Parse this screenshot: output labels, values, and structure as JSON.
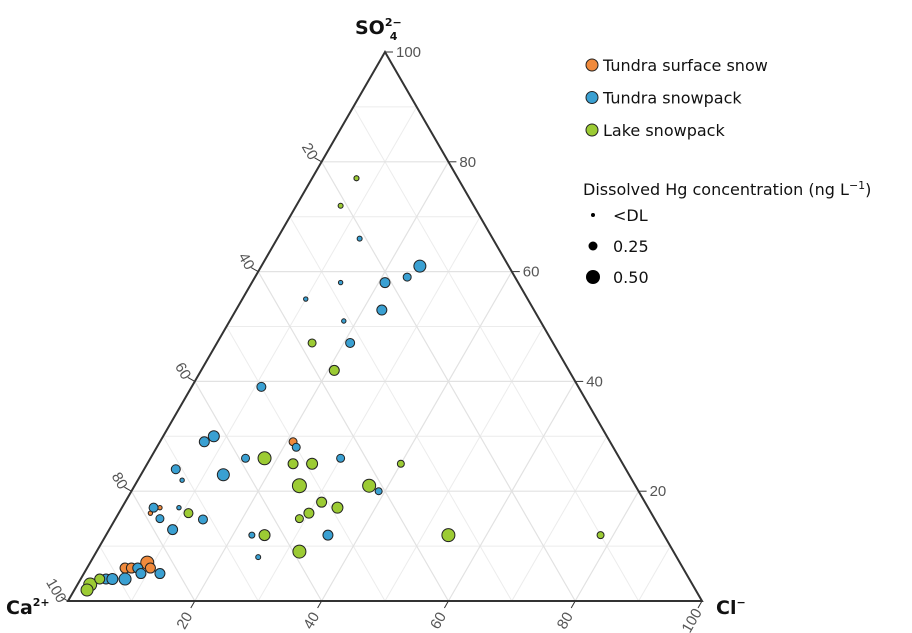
{
  "chart_data": {
    "type": "ternary",
    "apex_labels": {
      "so4": {
        "base": "SO",
        "sub": "4",
        "sup": "2−"
      },
      "ca": {
        "base": "Ca",
        "sup": "2+"
      },
      "cl": {
        "base": "Cl",
        "sup": "−"
      }
    },
    "ticks": [
      20,
      40,
      60,
      80,
      100
    ],
    "minor_ticks": [
      10,
      30,
      50,
      70,
      90
    ],
    "grid": true,
    "size_legend": {
      "title": {
        "text": "Dissolved Hg concentration (ng L",
        "sup": "−1",
        "end": ")"
      },
      "entries": [
        {
          "value": 0,
          "label": "<DL"
        },
        0.25,
        {
          "value": 0.5,
          "label": "0.50"
        }
      ]
    },
    "series": [
      {
        "name": "Tundra surface snow",
        "color": "#f08a3c",
        "so4": [
          29,
          17,
          16,
          6,
          7,
          6,
          6
        ],
        "cl": [
          21,
          6,
          5,
          6,
          9,
          10,
          7
        ],
        "ca": [
          50,
          77,
          79,
          88,
          84,
          84,
          87
        ],
        "hg": [
          0.2,
          0.02,
          0.02,
          0.3,
          0.45,
          0.3,
          0.3
        ]
      },
      {
        "name": "Tundra snowpack",
        "color": "#3aa0d2",
        "so4": [
          66,
          61,
          59,
          58,
          58,
          55,
          53,
          51,
          47,
          39,
          30,
          29,
          28,
          26,
          26,
          24,
          23,
          22,
          20,
          17,
          17,
          15,
          15,
          13,
          12,
          12,
          8,
          4,
          4,
          4,
          6,
          5,
          5
        ],
        "cl": [
          13,
          25,
          24,
          21,
          14,
          10,
          23,
          18,
          21,
          11,
          8,
          7,
          22,
          15,
          30,
          5,
          13,
          7,
          39,
          5,
          9,
          7,
          14,
          10,
          23,
          35,
          26,
          4,
          5,
          7,
          8,
          12,
          9
        ],
        "ca": [
          21,
          14,
          17,
          21,
          28,
          35,
          24,
          31,
          32,
          50,
          62,
          64,
          50,
          59,
          44,
          71,
          64,
          71,
          41,
          78,
          74,
          78,
          72,
          77,
          65,
          53,
          66,
          92,
          91,
          89,
          86,
          83,
          86
        ],
        "hg": [
          0.05,
          0.4,
          0.2,
          0.3,
          0.02,
          0.02,
          0.3,
          0.02,
          0.25,
          0.25,
          0.35,
          0.3,
          0.2,
          0.2,
          0.2,
          0.25,
          0.4,
          0.02,
          0.15,
          0.25,
          0.02,
          0.2,
          0.25,
          0.3,
          0.1,
          0.3,
          0.05,
          0.3,
          0.35,
          0.4,
          0.3,
          0.3,
          0.3
        ]
      },
      {
        "name": "Lake snowpack",
        "color": "#9ccb34",
        "so4": [
          77,
          77,
          72,
          47,
          42,
          25,
          26,
          25,
          25,
          21,
          21,
          18,
          17,
          16,
          15,
          16,
          12,
          9,
          12,
          12,
          3,
          2,
          4
        ],
        "cl": [
          7,
          7,
          7,
          15,
          21,
          23,
          18,
          26,
          40,
          26,
          37,
          31,
          34,
          30,
          29,
          11,
          25,
          32,
          54,
          78,
          2,
          2,
          3
        ],
        "ca": [
          16,
          16,
          21,
          38,
          37,
          52,
          56,
          49,
          35,
          53,
          42,
          51,
          49,
          54,
          56,
          73,
          63,
          59,
          34,
          10,
          95,
          96,
          93
        ],
        "hg": [
          0.05,
          0.05,
          0.05,
          0.2,
          0.3,
          0.3,
          0.45,
          0.35,
          0.15,
          0.5,
          0.45,
          0.3,
          0.35,
          0.3,
          0.2,
          0.25,
          0.35,
          0.45,
          0.45,
          0.15,
          0.45,
          0.4,
          0.3
        ]
      }
    ]
  }
}
